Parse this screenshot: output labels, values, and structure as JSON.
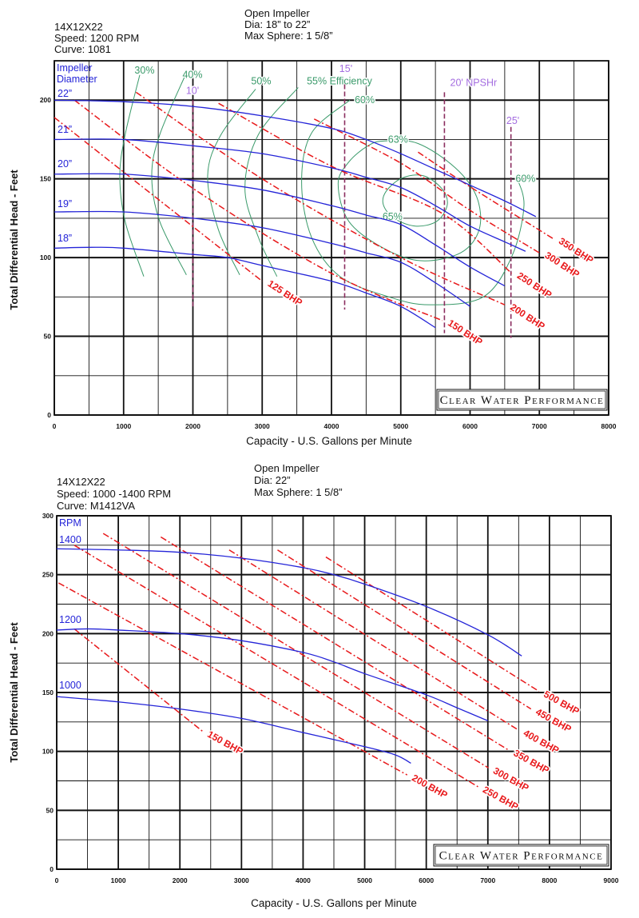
{
  "colors": {
    "head_curve": "#2424d8",
    "bhp_line": "#e8191b",
    "efficiency": "#3a9a6a",
    "npshr_line": "#8b2d5f",
    "npshr_label": "#a46de0",
    "grid": "#111111"
  },
  "chart_data": [
    {
      "type": "line",
      "header": {
        "model": "14X12X22",
        "speed": "Speed: 1200 RPM",
        "curve": "Curve: 1081",
        "impeller": "Open Impeller",
        "dia": "Dia: 18” to 22”",
        "sphere": "Max Sphere: 1 5/8”"
      },
      "xlabel": "Capacity - U.S. Gallons per Minute",
      "ylabel": "Total Differential Head - Feet",
      "xlim": [
        0,
        8000
      ],
      "ylim": [
        0,
        225
      ],
      "xticks": [
        "0",
        "1000",
        "2000",
        "3000",
        "4000",
        "5000",
        "6000",
        "7000",
        "8000"
      ],
      "yticks": [
        "0",
        "50",
        "100",
        "150",
        "200"
      ],
      "grid": true,
      "legend_title": [
        "Impeller",
        "Diameter"
      ],
      "stamp": "Clear Water Performance",
      "series": [
        {
          "name": "22”",
          "x": [
            0,
            1000,
            2000,
            3000,
            4000,
            4500,
            5000,
            5500,
            6000,
            6500,
            6950
          ],
          "y": [
            200,
            199,
            196,
            190,
            182,
            175,
            166,
            156,
            146,
            136,
            126
          ]
        },
        {
          "name": "21”",
          "x": [
            0,
            1000,
            2000,
            3000,
            4000,
            4500,
            5000,
            5500,
            6000,
            6500,
            6800
          ],
          "y": [
            175,
            175,
            171,
            166,
            157,
            151,
            144.5,
            133,
            120,
            110,
            104
          ]
        },
        {
          "name": "20”",
          "x": [
            0,
            1000,
            2000,
            3000,
            4000,
            4500,
            5000,
            5500,
            6000,
            6500
          ],
          "y": [
            153,
            153,
            149,
            143,
            133,
            127,
            121,
            108,
            94,
            82
          ]
        },
        {
          "name": "19”",
          "x": [
            0,
            1000,
            2000,
            3000,
            4000,
            4500,
            5000,
            5500,
            6000
          ],
          "y": [
            129,
            129,
            125,
            119,
            109,
            103,
            97,
            84,
            69
          ]
        },
        {
          "name": "18”",
          "x": [
            0,
            500,
            1000,
            2000,
            2500,
            3000,
            4000,
            4500,
            5000,
            5500
          ],
          "y": [
            106,
            106.5,
            106,
            102,
            100,
            95,
            85,
            77.5,
            69,
            55.5
          ]
        }
      ],
      "bhp_lines": [
        {
          "name": "125 BHP",
          "x": [
            0,
            3000
          ],
          "y": [
            189,
            85
          ]
        },
        {
          "name": "150 BHP",
          "x": [
            290,
            2000,
            4000,
            5600
          ],
          "y": [
            200,
            144,
            90,
            60
          ]
        },
        {
          "name": "200 BHP",
          "x": [
            1180,
            3000,
            5000,
            6500
          ],
          "y": [
            205,
            150,
            100,
            70
          ]
        },
        {
          "name": "250 BHP",
          "x": [
            2370,
            4000,
            5600,
            6600
          ],
          "y": [
            198,
            158,
            128,
            90
          ]
        },
        {
          "name": "300 BHP",
          "x": [
            3750,
            5000,
            6000,
            7000
          ],
          "y": [
            188,
            160,
            130,
            103
          ]
        },
        {
          "name": "350 BHP",
          "x": [
            5250,
            6000,
            7200
          ],
          "y": [
            167,
            145,
            112
          ]
        }
      ],
      "efficiency": [
        {
          "name": "30%",
          "closed": false,
          "x": [
            1233,
            1022,
            945,
            1022,
            1291
          ],
          "y": [
            216,
            178,
            152,
            123,
            88
          ]
        },
        {
          "name": "40%",
          "closed": false,
          "x": [
            1902,
            1521,
            1406,
            1521,
            1906
          ],
          "y": [
            217,
            178,
            152,
            123,
            89
          ]
        },
        {
          "name": "50%",
          "closed": false,
          "x": [
            2905,
            2405,
            2213,
            2366,
            2675
          ],
          "y": [
            207,
            178,
            152,
            118,
            89
          ]
        },
        {
          "name": "55% Efficiency",
          "closed": false,
          "x": [
            3520,
            2944,
            2751,
            2944,
            3213
          ],
          "y": [
            208,
            178,
            144,
            113,
            88
          ]
        },
        {
          "name": "60%",
          "closed": false,
          "x": [
            4265,
            3711,
            3569,
            3711,
            4122,
            4830,
            5418,
            6190,
            6605,
            6778,
            6663
          ],
          "y": [
            200,
            179,
            148,
            113,
            88,
            75,
            70,
            75,
            101,
            133,
            152
          ]
        },
        {
          "name": "63%",
          "closed": true,
          "x": [
            4749,
            5246,
            5787,
            6095,
            6133,
            5864,
            5288,
            4749,
            4250,
            4096,
            4250,
            4519
          ],
          "y": [
            174,
            172.5,
            157,
            138.6,
            118,
            103,
            98,
            106,
            123,
            147,
            160.7,
            170.8
          ]
        },
        {
          "name": "65%",
          "closed": true,
          "x": [
            4787,
            5018,
            5326,
            5594,
            5671,
            5518,
            5210,
            4903,
            4749
          ],
          "y": [
            142,
            150.5,
            152,
            143.7,
            133.5,
            123,
            120,
            125,
            133.5
          ]
        }
      ],
      "npshr": [
        {
          "name": "10'",
          "x": 2000,
          "y": [
            69,
            200
          ]
        },
        {
          "name": "15'",
          "x": 4190,
          "y": [
            67,
            210
          ]
        },
        {
          "name": "20' NPSHr",
          "x": 5630,
          "y": [
            52,
            205
          ]
        },
        {
          "name": "25'",
          "x": 6590,
          "y": [
            49,
            183
          ]
        }
      ]
    },
    {
      "type": "line",
      "header": {
        "model": "14X12X22",
        "speed": "Speed: 1000 -1400 RPM",
        "curve": "Curve: M1412VA",
        "impeller": "Open Impeller",
        "dia": "Dia: 22”",
        "sphere": "Max Sphere: 1 5/8”"
      },
      "xlabel": "Capacity - U.S. Gallons per Minute",
      "ylabel": "Total Differential Head - Feet",
      "xlim": [
        0,
        9000
      ],
      "ylim": [
        0,
        300
      ],
      "xticks": [
        "0",
        "1000",
        "2000",
        "3000",
        "4000",
        "5000",
        "6000",
        "7000",
        "8000",
        "9000"
      ],
      "yticks": [
        "0",
        "50",
        "100",
        "150",
        "200",
        "250",
        "300"
      ],
      "grid": true,
      "legend_title": [
        "RPM"
      ],
      "stamp": "Clear Water Performance",
      "series": [
        {
          "name": "1400",
          "x": [
            0,
            1000,
            2000,
            3000,
            4000,
            4500,
            5000,
            6000,
            7000,
            7550
          ],
          "y": [
            272,
            271,
            269,
            264,
            256,
            250,
            242,
            223,
            199,
            181
          ]
        },
        {
          "name": "1200",
          "x": [
            0,
            500,
            1000,
            2000,
            3000,
            4000,
            4500,
            5000,
            6000,
            6500,
            7000
          ],
          "y": [
            203,
            204,
            203,
            200,
            194,
            184,
            176,
            166,
            148,
            137,
            126
          ]
        },
        {
          "name": "1000",
          "x": [
            0,
            1000,
            2000,
            3000,
            4000,
            5000,
            5500,
            5750
          ],
          "y": [
            146.5,
            142,
            136,
            128,
            116,
            104,
            97,
            90
          ]
        }
      ],
      "bhp_lines": [
        {
          "name": "150 BHP",
          "x": [
            285,
            2370
          ],
          "y": [
            204,
            117
          ]
        },
        {
          "name": "200 BHP",
          "x": [
            30,
            5690
          ],
          "y": [
            243,
            80
          ]
        },
        {
          "name": "250 BHP",
          "x": [
            285,
            6840
          ],
          "y": [
            275,
            70
          ]
        },
        {
          "name": "300 BHP",
          "x": [
            755,
            7010
          ],
          "y": [
            285,
            86
          ]
        },
        {
          "name": "350 BHP",
          "x": [
            1690,
            7340
          ],
          "y": [
            282,
            101
          ]
        },
        {
          "name": "400 BHP",
          "x": [
            2800,
            7500
          ],
          "y": [
            271,
            118
          ]
        },
        {
          "name": "450 BHP",
          "x": [
            3585,
            7700
          ],
          "y": [
            271,
            136
          ]
        },
        {
          "name": "500 BHP",
          "x": [
            4370,
            7830
          ],
          "y": [
            265,
            151
          ]
        }
      ],
      "efficiency": [],
      "npshr": []
    }
  ]
}
